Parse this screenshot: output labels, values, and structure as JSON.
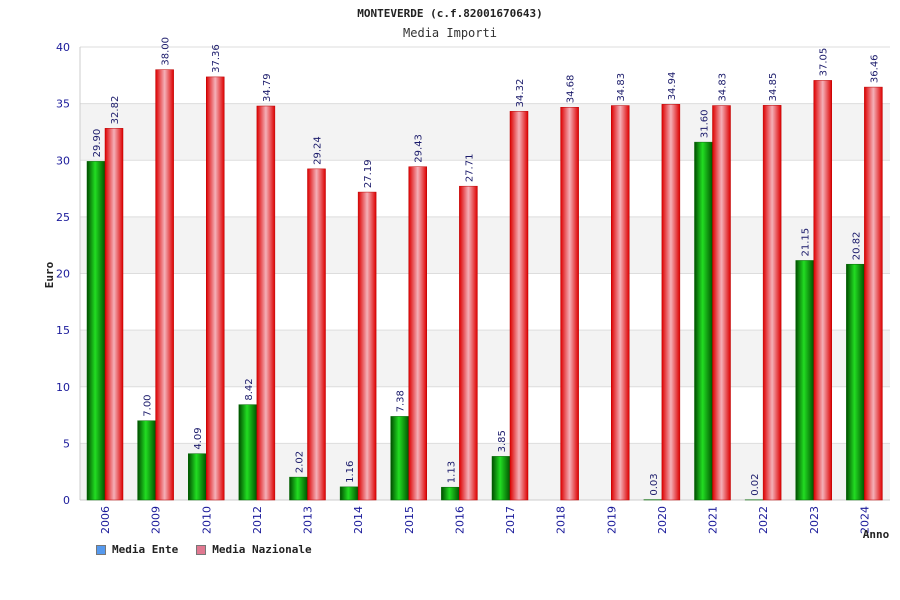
{
  "chart_data": {
    "type": "bar",
    "title": "MONTEVERDE (c.f.82001670643)",
    "subtitle": "Media Importi",
    "ylabel": "Euro",
    "xlabel": "Anno",
    "ylim": [
      0,
      40
    ],
    "yticks": [
      0,
      5,
      10,
      15,
      20,
      25,
      30,
      35,
      40
    ],
    "grid": true,
    "legend_position": "bottom-left",
    "categories": [
      "2006",
      "2009",
      "2010",
      "2012",
      "2013",
      "2014",
      "2015",
      "2016",
      "2017",
      "2018",
      "2019",
      "2020",
      "2021",
      "2022",
      "2023",
      "2024"
    ],
    "series": [
      {
        "name": "Media Ente",
        "legend_color": "#5599ee",
        "bar_color": "#00aa00",
        "values": [
          29.9,
          7.0,
          4.09,
          8.42,
          2.02,
          1.16,
          7.38,
          1.13,
          3.85,
          null,
          null,
          0.03,
          31.6,
          0.02,
          21.15,
          20.82
        ],
        "labels": [
          "29.90",
          "7.00",
          "4.09",
          "8.42",
          "2.02",
          "1.16",
          "7.38",
          "1.13",
          "3.85",
          "",
          "",
          "0.03",
          "31.60",
          "0.02",
          "21.15",
          "20.82"
        ]
      },
      {
        "name": "Media Nazionale",
        "legend_color": "#e07890",
        "bar_color": "#ee1111",
        "values": [
          32.82,
          38.0,
          37.36,
          34.79,
          29.24,
          27.19,
          29.43,
          27.71,
          34.32,
          34.68,
          34.83,
          34.94,
          34.83,
          34.85,
          37.05,
          36.46
        ],
        "labels": [
          "32.82",
          "38.00",
          "37.36",
          "34.79",
          "29.24",
          "27.19",
          "29.43",
          "27.71",
          "34.32",
          "34.68",
          "34.83",
          "34.94",
          "34.83",
          "34.85",
          "37.05",
          "36.46"
        ]
      }
    ]
  }
}
